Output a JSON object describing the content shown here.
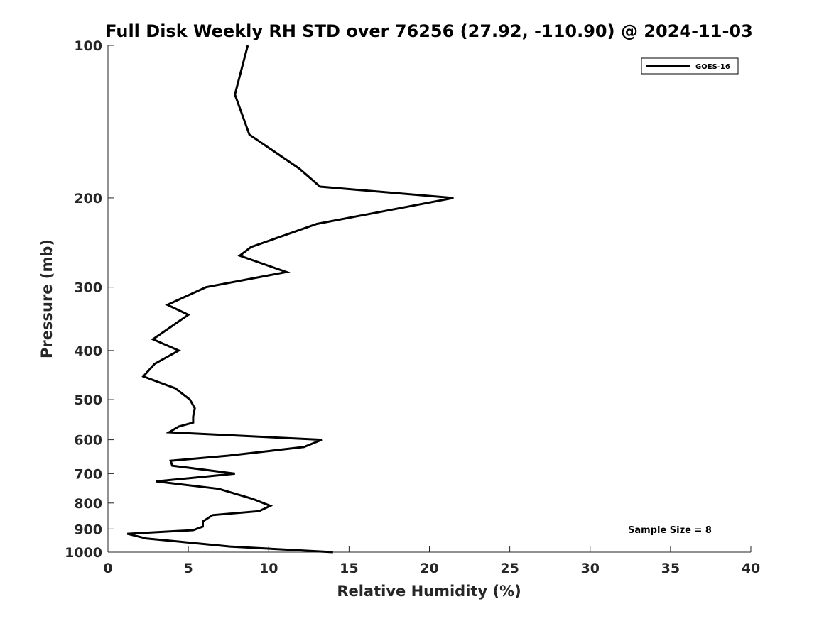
{
  "chart_data": {
    "type": "line",
    "title": "Full Disk Weekly RH STD over 76256 (27.92, -110.90) @ 2024-11-03",
    "xlabel": "Relative Humidity (%)",
    "ylabel": "Pressure (mb)",
    "xlim": [
      0,
      40
    ],
    "ylim": [
      100,
      1000
    ],
    "y_scale": "log",
    "y_reversed": true,
    "grid": false,
    "x_ticks": [
      0,
      5,
      10,
      15,
      20,
      25,
      30,
      35,
      40
    ],
    "x_tick_labels": [
      "0",
      "5",
      "10",
      "15",
      "20",
      "25",
      "30",
      "35",
      "40"
    ],
    "y_ticks": [
      100,
      200,
      300,
      400,
      500,
      600,
      700,
      800,
      900,
      1000
    ],
    "y_tick_labels": [
      "100",
      "200",
      "300",
      "400",
      "500",
      "600",
      "700",
      "800",
      "900",
      "1000"
    ],
    "legend_position": "top-right",
    "annotation": "Sample Size = 8",
    "series": [
      {
        "name": "GOES-16",
        "color": "#000000",
        "x": [
          8.7,
          7.9,
          8.8,
          11.9,
          13.2,
          21.5,
          13.0,
          8.9,
          8.2,
          11.1,
          6.1,
          3.7,
          5.0,
          3.6,
          2.8,
          4.4,
          2.9,
          2.2,
          4.2,
          5.1,
          5.4,
          5.3,
          5.3,
          4.4,
          3.8,
          13.3,
          12.2,
          7.5,
          3.9,
          4.0,
          7.9,
          3.0,
          6.9,
          9.0,
          10.1,
          9.4,
          6.5,
          5.9,
          5.9,
          5.3,
          1.2,
          2.4,
          4.7,
          7.6,
          14.0
        ],
        "y": [
          100,
          125,
          150,
          175,
          190,
          200,
          225,
          250,
          260,
          280,
          300,
          325,
          340,
          365,
          380,
          400,
          425,
          450,
          475,
          500,
          520,
          540,
          555,
          565,
          580,
          600,
          620,
          645,
          660,
          675,
          700,
          725,
          750,
          785,
          810,
          830,
          845,
          870,
          890,
          905,
          920,
          940,
          955,
          975,
          1000
        ]
      }
    ]
  }
}
